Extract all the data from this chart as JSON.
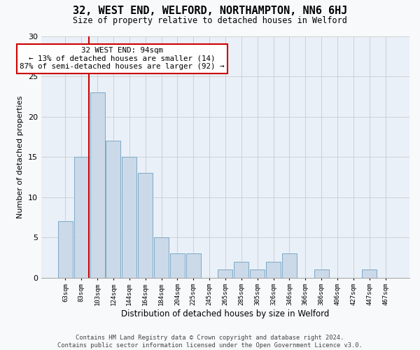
{
  "title": "32, WEST END, WELFORD, NORTHAMPTON, NN6 6HJ",
  "subtitle": "Size of property relative to detached houses in Welford",
  "xlabel": "Distribution of detached houses by size in Welford",
  "ylabel": "Number of detached properties",
  "categories": [
    "63sqm",
    "83sqm",
    "103sqm",
    "124sqm",
    "144sqm",
    "164sqm",
    "184sqm",
    "204sqm",
    "225sqm",
    "245sqm",
    "265sqm",
    "285sqm",
    "305sqm",
    "326sqm",
    "346sqm",
    "366sqm",
    "386sqm",
    "406sqm",
    "427sqm",
    "447sqm",
    "467sqm"
  ],
  "values": [
    7,
    15,
    23,
    17,
    15,
    13,
    5,
    3,
    3,
    0,
    1,
    2,
    1,
    2,
    3,
    0,
    1,
    0,
    0,
    1,
    0
  ],
  "bar_color": "#ccd9e8",
  "bar_edge_color": "#7aaac8",
  "bar_linewidth": 0.7,
  "grid_color": "#cccccc",
  "ylim": [
    0,
    30
  ],
  "yticks": [
    0,
    5,
    10,
    15,
    20,
    25,
    30
  ],
  "property_line_x": 1.475,
  "property_line_color": "#cc0000",
  "annotation_text": "32 WEST END: 94sqm\n← 13% of detached houses are smaller (14)\n87% of semi-detached houses are larger (92) →",
  "annotation_box_facecolor": "#ffffff",
  "annotation_box_edgecolor": "#cc0000",
  "footnote": "Contains HM Land Registry data © Crown copyright and database right 2024.\nContains public sector information licensed under the Open Government Licence v3.0.",
  "fig_facecolor": "#f8f9fb",
  "ax_facecolor": "#eaf0f8"
}
